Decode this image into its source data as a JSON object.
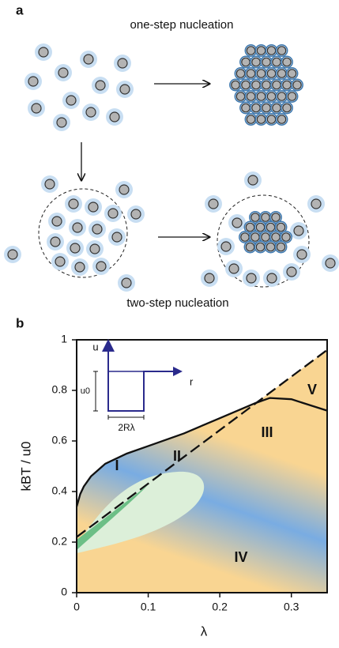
{
  "panel_a": {
    "label": "a",
    "top_caption": "one-step nucleation",
    "bottom_caption": "two-step nucleation"
  },
  "chart_data": {
    "type": "line",
    "panel_label": "b",
    "xlabel": "λ",
    "ylabel": "kBT / u0",
    "xlim": [
      0,
      0.35
    ],
    "ylim": [
      0,
      1
    ],
    "xticks": [
      0,
      0.1,
      0.2,
      0.3
    ],
    "yticks": [
      0,
      0.2,
      0.4,
      0.6,
      0.8,
      1
    ],
    "series": [
      {
        "color": "#111111",
        "style": "solid",
        "x": [
          0,
          0.005,
          0.01,
          0.02,
          0.04,
          0.07,
          0.1,
          0.15,
          0.2,
          0.25,
          0.27,
          0.3,
          0.35
        ],
        "values": [
          0.34,
          0.39,
          0.42,
          0.46,
          0.51,
          0.55,
          0.58,
          0.63,
          0.69,
          0.75,
          0.77,
          0.765,
          0.72
        ]
      },
      {
        "color": "#111111",
        "style": "dashed",
        "x": [
          0,
          0.35
        ],
        "values": [
          0.22,
          0.96
        ]
      }
    ],
    "annotations": [
      "I",
      "II",
      "III",
      "IV",
      "V"
    ],
    "inset": {
      "y_label": "u",
      "x_label": "r",
      "depth_label": "u0",
      "width_label": "2Rλ"
    }
  }
}
